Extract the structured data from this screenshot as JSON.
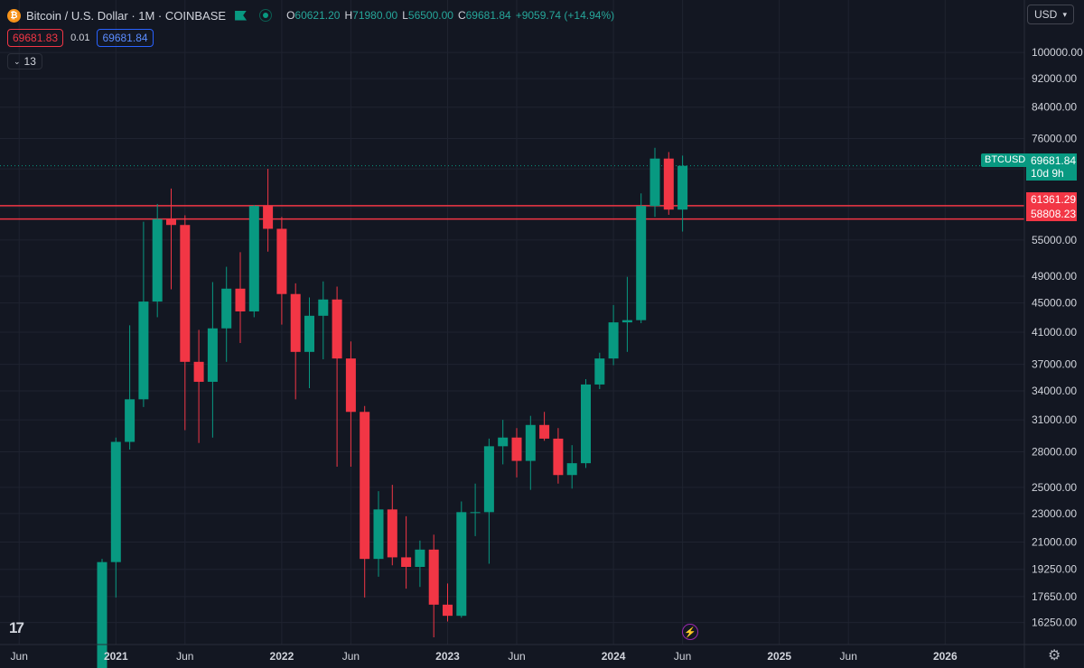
{
  "header": {
    "logo_glyph": "₿",
    "title": "Bitcoin / U.S. Dollar · 1M · COINBASE",
    "ohlc": [
      {
        "k": "O",
        "v": "60621.20"
      },
      {
        "k": "H",
        "v": "71980.00"
      },
      {
        "k": "L",
        "v": "56500.00"
      },
      {
        "k": "C",
        "v": "69681.84"
      }
    ],
    "change": "+9059.74 (+14.94%)"
  },
  "trade": {
    "sell": "69681.83",
    "spread": "0.01",
    "buy": "69681.84"
  },
  "indicators": {
    "count": "13"
  },
  "currency": {
    "label": "USD"
  },
  "price_tags": {
    "last": "69681.84",
    "countdown": "10d 9h",
    "symbol": "BTCUSD",
    "level1": "61361.29",
    "level2": "58808.23"
  },
  "colors": {
    "up": "#089981",
    "down": "#f23645",
    "level": "#f23645",
    "background": "#131722",
    "grid": "#1f2330"
  },
  "chart_data": {
    "type": "candlestick",
    "scale": "log",
    "ylim": [
      15500,
      110000
    ],
    "y_ticks": [
      100000,
      92000,
      84000,
      76000,
      69000,
      61000,
      55000,
      49000,
      45000,
      41000,
      37000,
      34000,
      31000,
      28000,
      25000,
      23000,
      21000,
      19250,
      17650,
      16250
    ],
    "y_tick_labels": [
      "100000.00",
      "92000.00",
      "84000.00",
      "76000.00",
      "69000.00",
      "61000.00",
      "55000.00",
      "49000.00",
      "45000.00",
      "41000.00",
      "37000.00",
      "34000.00",
      "31000.00",
      "28000.00",
      "25000.00",
      "23000.00",
      "21000.00",
      "19250.00",
      "17650.00",
      "16250.00"
    ],
    "x_ticks": [
      {
        "label": "Jun",
        "i": -6
      },
      {
        "label": "2021",
        "i": 1
      },
      {
        "label": "Jun",
        "i": 6
      },
      {
        "label": "2022",
        "i": 13
      },
      {
        "label": "Jun",
        "i": 18
      },
      {
        "label": "2023",
        "i": 25
      },
      {
        "label": "Jun",
        "i": 30
      },
      {
        "label": "2024",
        "i": 37
      },
      {
        "label": "Jun",
        "i": 42
      },
      {
        "label": "2025",
        "i": 49
      },
      {
        "label": "Jun",
        "i": 54
      },
      {
        "label": "2026",
        "i": 61
      }
    ],
    "horizontal_levels": [
      61361.29,
      58808.23
    ],
    "last_price": 69681.84,
    "candles": [
      {
        "o": 13800,
        "h": 19900,
        "l": 13200,
        "c": 19700
      },
      {
        "o": 19700,
        "h": 29300,
        "l": 17600,
        "c": 28900
      },
      {
        "o": 28900,
        "h": 41900,
        "l": 28200,
        "c": 33100
      },
      {
        "o": 33100,
        "h": 58300,
        "l": 32300,
        "c": 45200
      },
      {
        "o": 45200,
        "h": 61700,
        "l": 43000,
        "c": 58800
      },
      {
        "o": 58800,
        "h": 64800,
        "l": 47000,
        "c": 57700
      },
      {
        "o": 57700,
        "h": 59500,
        "l": 30000,
        "c": 37300
      },
      {
        "o": 37300,
        "h": 41300,
        "l": 28800,
        "c": 35000
      },
      {
        "o": 35000,
        "h": 48100,
        "l": 29300,
        "c": 41500
      },
      {
        "o": 41500,
        "h": 50500,
        "l": 37300,
        "c": 47100
      },
      {
        "o": 47100,
        "h": 52900,
        "l": 39600,
        "c": 43800
      },
      {
        "o": 43800,
        "h": 61500,
        "l": 43000,
        "c": 61300
      },
      {
        "o": 61300,
        "h": 69000,
        "l": 53000,
        "c": 57000
      },
      {
        "o": 57000,
        "h": 59200,
        "l": 42000,
        "c": 46300
      },
      {
        "o": 46300,
        "h": 47900,
        "l": 33100,
        "c": 38500
      },
      {
        "o": 38500,
        "h": 45800,
        "l": 34300,
        "c": 43200
      },
      {
        "o": 43200,
        "h": 48200,
        "l": 37600,
        "c": 45500
      },
      {
        "o": 45500,
        "h": 47400,
        "l": 26700,
        "c": 37700
      },
      {
        "o": 37700,
        "h": 39800,
        "l": 26700,
        "c": 31800
      },
      {
        "o": 31800,
        "h": 32400,
        "l": 17600,
        "c": 19900
      },
      {
        "o": 19900,
        "h": 24700,
        "l": 18800,
        "c": 23300
      },
      {
        "o": 23300,
        "h": 25200,
        "l": 19500,
        "c": 20000
      },
      {
        "o": 20000,
        "h": 22800,
        "l": 18100,
        "c": 19400
      },
      {
        "o": 19400,
        "h": 21100,
        "l": 18200,
        "c": 20500
      },
      {
        "o": 20500,
        "h": 21500,
        "l": 15500,
        "c": 17200
      },
      {
        "o": 17200,
        "h": 18400,
        "l": 16300,
        "c": 16600
      },
      {
        "o": 16600,
        "h": 23900,
        "l": 16500,
        "c": 23100
      },
      {
        "o": 23100,
        "h": 25300,
        "l": 21400,
        "c": 23100
      },
      {
        "o": 23100,
        "h": 29200,
        "l": 19600,
        "c": 28500
      },
      {
        "o": 28500,
        "h": 31000,
        "l": 26900,
        "c": 29300
      },
      {
        "o": 29300,
        "h": 30200,
        "l": 25800,
        "c": 27200
      },
      {
        "o": 27200,
        "h": 31400,
        "l": 24800,
        "c": 30500
      },
      {
        "o": 30500,
        "h": 31800,
        "l": 29000,
        "c": 29200
      },
      {
        "o": 29200,
        "h": 30200,
        "l": 25300,
        "c": 26000
      },
      {
        "o": 26000,
        "h": 28600,
        "l": 24900,
        "c": 27000
      },
      {
        "o": 27000,
        "h": 35300,
        "l": 26600,
        "c": 34700
      },
      {
        "o": 34700,
        "h": 38400,
        "l": 34200,
        "c": 37700
      },
      {
        "o": 37700,
        "h": 44700,
        "l": 36900,
        "c": 42300
      },
      {
        "o": 42300,
        "h": 48900,
        "l": 38500,
        "c": 42600
      },
      {
        "o": 42600,
        "h": 63800,
        "l": 42200,
        "c": 61300
      },
      {
        "o": 61300,
        "h": 73800,
        "l": 59200,
        "c": 71300
      },
      {
        "o": 71300,
        "h": 72800,
        "l": 59600,
        "c": 60600
      },
      {
        "o": 60600,
        "h": 71980,
        "l": 56500,
        "c": 69681.84
      }
    ]
  }
}
